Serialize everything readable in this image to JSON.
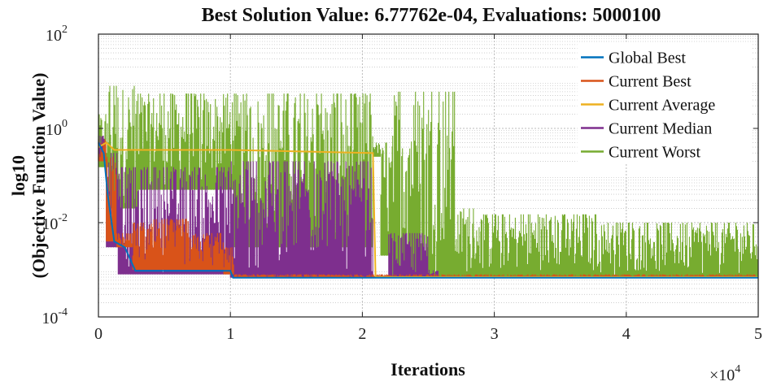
{
  "chart_data": {
    "type": "line",
    "title": "Best Solution Value: 6.77762e-04, Evaluations: 5000100",
    "xlabel": "Iterations",
    "ylabel_line1": "log10",
    "ylabel_line2": "(Objective Function Value)",
    "x_multiplier": {
      "base": "×10",
      "exp": "4"
    },
    "xlim": [
      0,
      50000
    ],
    "ylim": [
      0.0001,
      100
    ],
    "yscale": "log",
    "grid": true,
    "minor_grid": true,
    "legend_position": "top-right",
    "x_ticks": [
      {
        "value": 0,
        "label": "0"
      },
      {
        "value": 10000,
        "label": "1"
      },
      {
        "value": 20000,
        "label": "2"
      },
      {
        "value": 30000,
        "label": "3"
      },
      {
        "value": 40000,
        "label": "4"
      },
      {
        "value": 50000,
        "label": "5"
      }
    ],
    "y_ticks": [
      {
        "value": 0.0001,
        "base": "10",
        "exp": "-4"
      },
      {
        "value": 0.01,
        "base": "10",
        "exp": "-2"
      },
      {
        "value": 1,
        "base": "10",
        "exp": "0"
      },
      {
        "value": 100,
        "base": "10",
        "exp": "2"
      }
    ],
    "series": [
      {
        "name": "Global Best",
        "color": "#0072BD",
        "kind": "line",
        "points": [
          [
            0,
            0.5
          ],
          [
            400,
            0.3
          ],
          [
            700,
            0.04
          ],
          [
            1200,
            0.004
          ],
          [
            2000,
            0.003
          ],
          [
            2800,
            0.00095
          ],
          [
            10000,
            0.00095
          ],
          [
            10200,
            0.00068
          ],
          [
            50000,
            0.00068
          ]
        ]
      },
      {
        "name": "Current Best",
        "color": "#D95319",
        "kind": "band",
        "segments": [
          {
            "x0": 0,
            "x1": 600,
            "lo": 0.2,
            "hi": 0.6
          },
          {
            "x0": 600,
            "x1": 1400,
            "lo": 0.004,
            "hi": 0.25
          },
          {
            "x0": 1400,
            "x1": 2600,
            "lo": 0.003,
            "hi": 0.006
          },
          {
            "x0": 2600,
            "x1": 4200,
            "lo": 0.001,
            "hi": 0.01
          },
          {
            "x0": 4200,
            "x1": 6800,
            "lo": 0.001,
            "hi": 0.012
          },
          {
            "x0": 6800,
            "x1": 9500,
            "lo": 0.001,
            "hi": 0.006
          },
          {
            "x0": 9500,
            "x1": 10300,
            "lo": 0.0008,
            "hi": 0.003
          },
          {
            "x0": 10300,
            "x1": 50000,
            "lo": 0.00068,
            "hi": 0.0008
          }
        ]
      },
      {
        "name": "Current Average",
        "color": "#EDB120",
        "kind": "line",
        "points": [
          [
            0,
            0.4
          ],
          [
            600,
            0.5
          ],
          [
            1200,
            0.35
          ],
          [
            10000,
            0.35
          ],
          [
            20800,
            0.3
          ],
          [
            21000,
            0.0007
          ],
          [
            50000,
            0.0007
          ]
        ]
      },
      {
        "name": "Current Median",
        "color": "#7E2F8E",
        "kind": "band",
        "segments": [
          {
            "x0": 0,
            "x1": 600,
            "lo": 0.2,
            "hi": 0.7
          },
          {
            "x0": 600,
            "x1": 1500,
            "lo": 0.003,
            "hi": 0.3
          },
          {
            "x0": 1500,
            "x1": 10000,
            "lo": 0.0008,
            "hi": 0.15
          },
          {
            "x0": 10000,
            "x1": 20800,
            "lo": 0.00068,
            "hi": 0.2
          },
          {
            "x0": 22000,
            "x1": 25000,
            "lo": 0.00068,
            "hi": 0.006
          },
          {
            "x0": 25000,
            "x1": 25800,
            "lo": 0.00068,
            "hi": 0.001
          }
        ]
      },
      {
        "name": "Current Worst",
        "color": "#77AC30",
        "kind": "band",
        "segments": [
          {
            "x0": 0,
            "x1": 800,
            "lo": 0.15,
            "hi": 2.0
          },
          {
            "x0": 800,
            "x1": 3000,
            "lo": 0.02,
            "hi": 8.0
          },
          {
            "x0": 3000,
            "x1": 10300,
            "lo": 0.05,
            "hi": 5.5
          },
          {
            "x0": 10300,
            "x1": 20800,
            "lo": 0.003,
            "hi": 5.5
          },
          {
            "x0": 20800,
            "x1": 21400,
            "lo": 0.25,
            "hi": 0.5
          },
          {
            "x0": 21400,
            "x1": 22300,
            "lo": 0.002,
            "hi": 0.5
          },
          {
            "x0": 22300,
            "x1": 27000,
            "lo": 0.00068,
            "hi": 6.0
          },
          {
            "x0": 27000,
            "x1": 29000,
            "lo": 0.00068,
            "hi": 0.02
          },
          {
            "x0": 29000,
            "x1": 38000,
            "lo": 0.00068,
            "hi": 0.015
          },
          {
            "x0": 38000,
            "x1": 50000,
            "lo": 0.00068,
            "hi": 0.01
          }
        ]
      }
    ]
  }
}
